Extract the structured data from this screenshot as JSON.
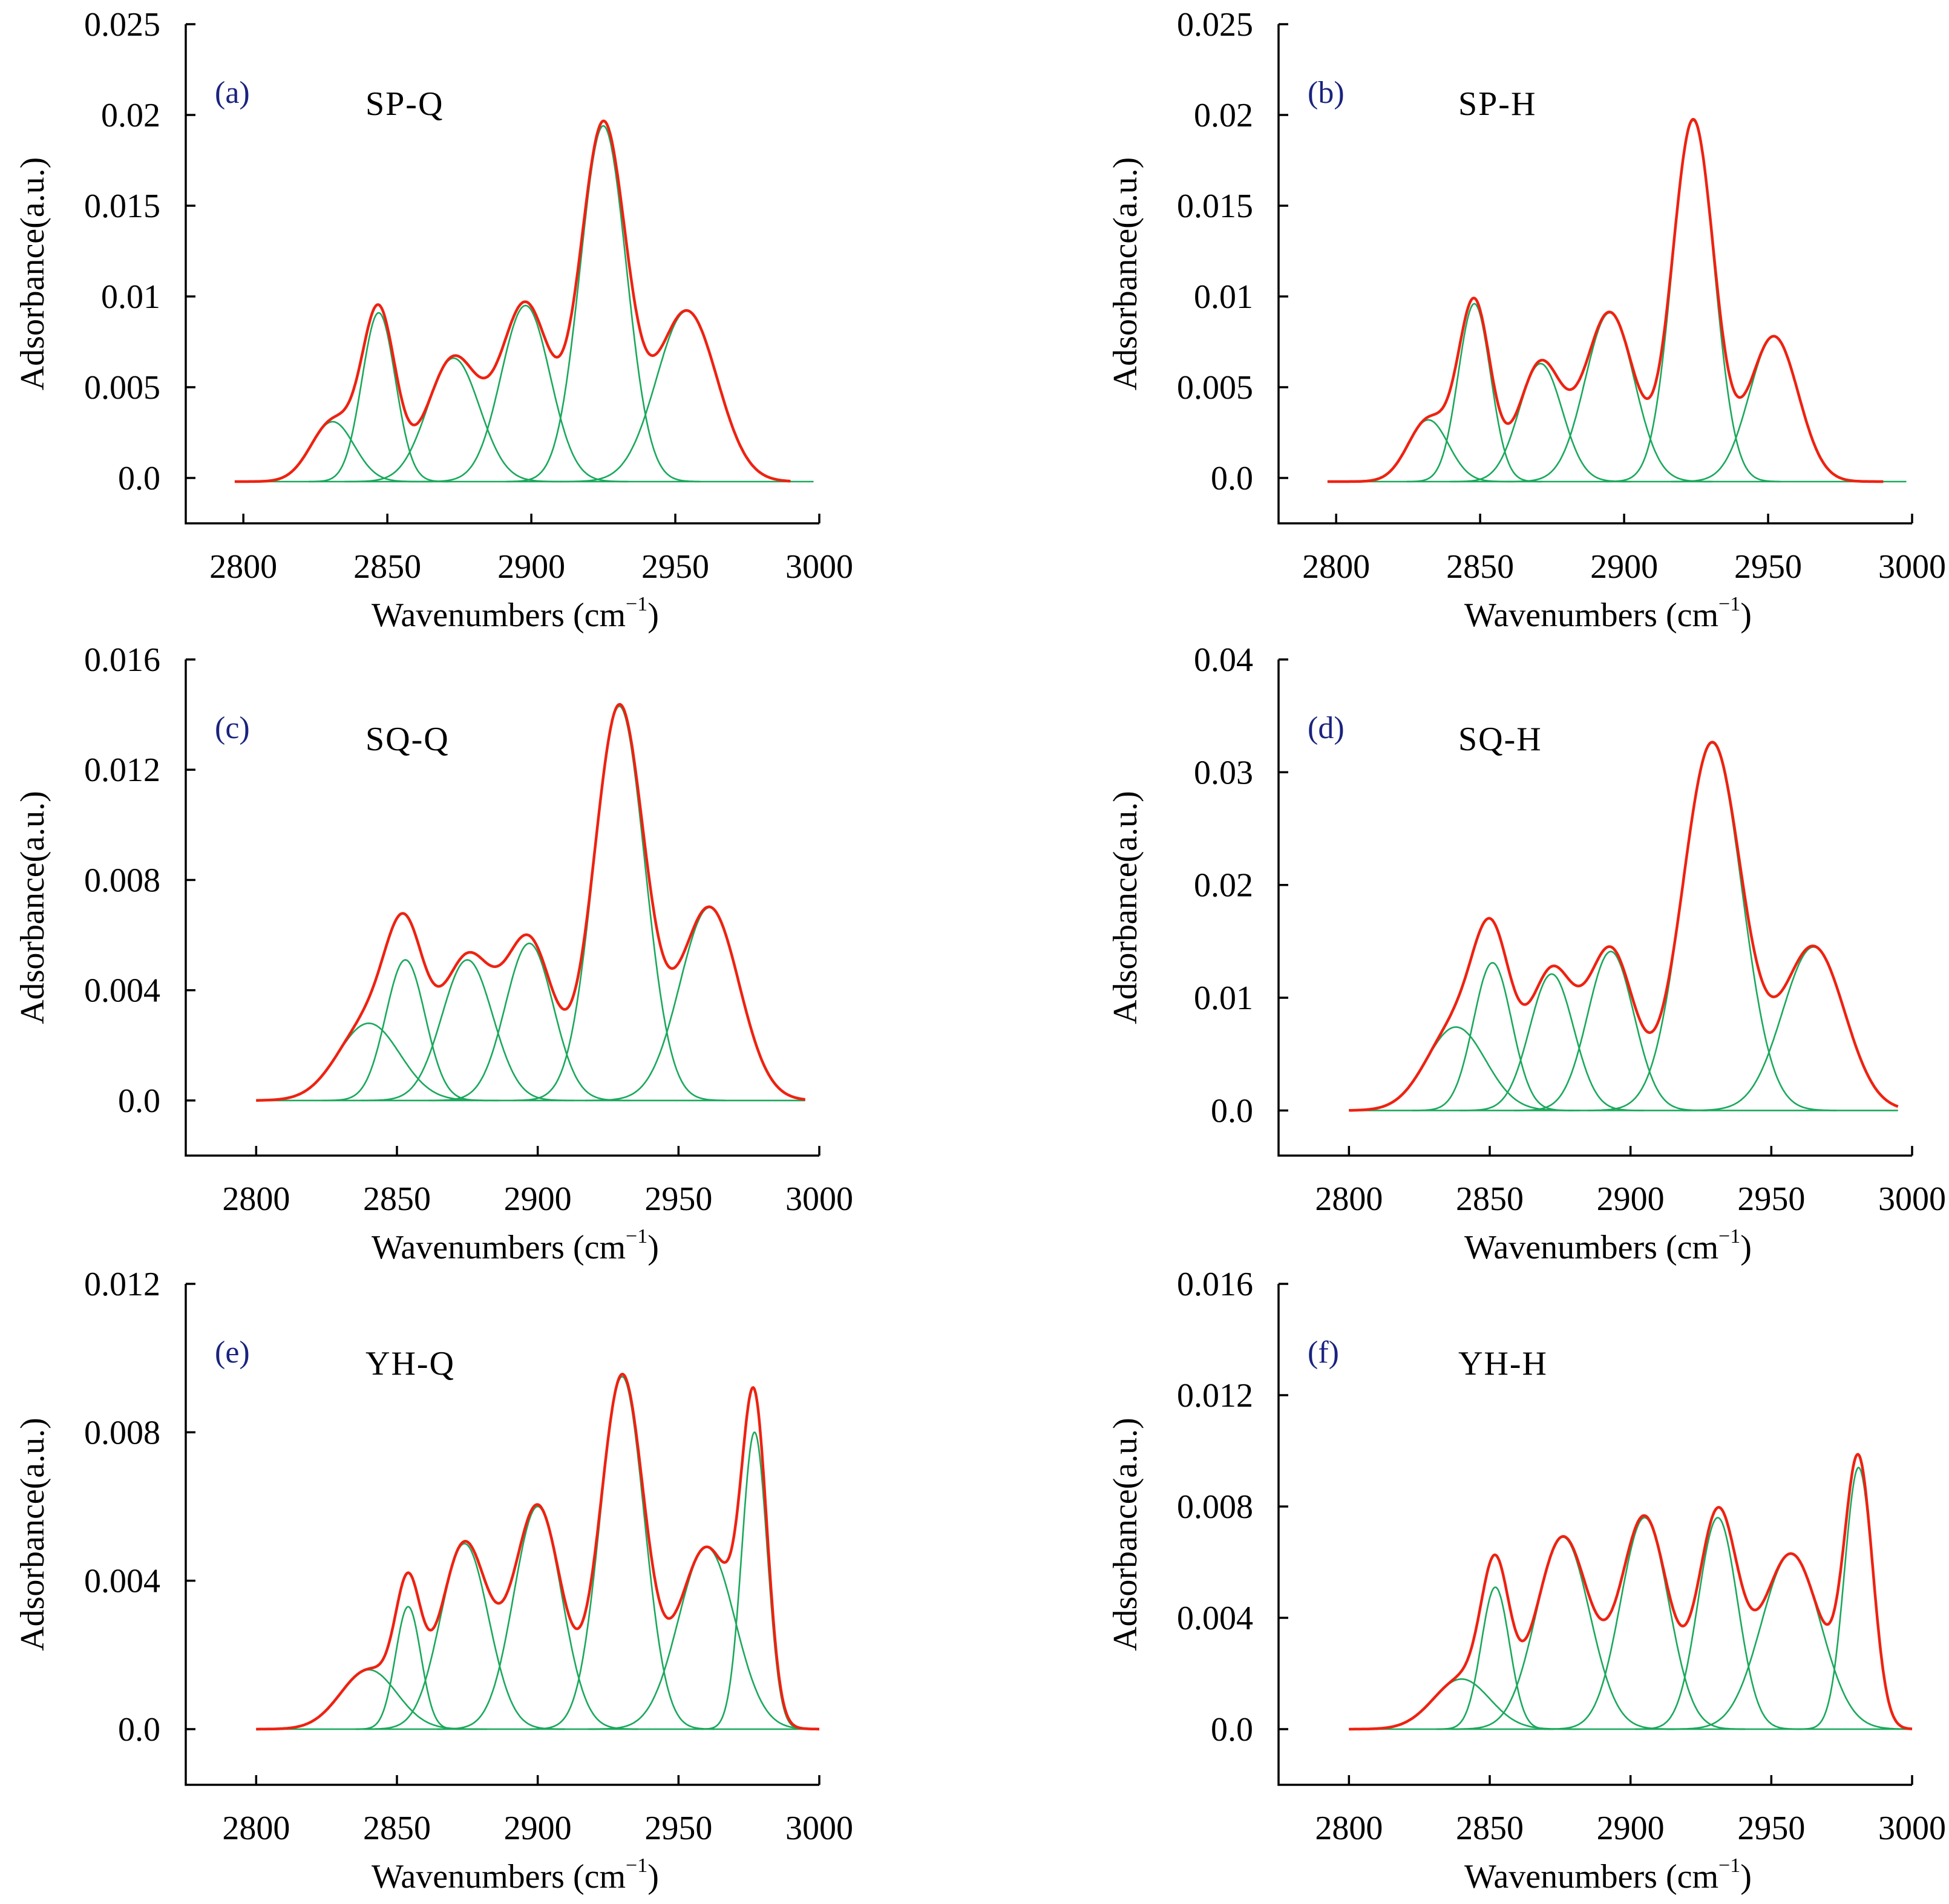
{
  "colors": {
    "total": "#ee2211",
    "component": "#1aa85c",
    "letter": "#1a237e",
    "axis": "#000000"
  },
  "axis_labels": {
    "x_main": "Wavenumbers (cm",
    "x_sup": "−1",
    "x_close": ")",
    "y": "Adsorbance(a.u.)"
  },
  "chart_data": [
    {
      "type": "line",
      "panel": "(a)",
      "title": "SP-Q",
      "xlim": [
        2780,
        3000
      ],
      "ylim": [
        -0.0025,
        0.025
      ],
      "xticks": [
        2800,
        2850,
        2900,
        2950,
        3000
      ],
      "xtick_labels": [
        "2800",
        "2850",
        "2900",
        "2950",
        "3000"
      ],
      "yticks": [
        0,
        0.005,
        0.01,
        0.015,
        0.02,
        0.025
      ],
      "ytick_labels": [
        "0.0",
        "0.005",
        "0.01",
        "0.015",
        "0.02",
        "0.025"
      ],
      "x_range": [
        2797,
        2990
      ],
      "baseline": -0.0002,
      "peaks": [
        {
          "center": 2831,
          "height": 0.0033,
          "width": 7.5
        },
        {
          "center": 2847,
          "height": 0.0093,
          "width": 5.8
        },
        {
          "center": 2873,
          "height": 0.0068,
          "width": 9.0
        },
        {
          "center": 2898,
          "height": 0.0097,
          "width": 8.5
        },
        {
          "center": 2925,
          "height": 0.0196,
          "width": 8.0
        },
        {
          "center": 2954,
          "height": 0.0094,
          "width": 10.5
        }
      ]
    },
    {
      "type": "line",
      "panel": "(b)",
      "title": "SP-H",
      "xlim": [
        2780,
        3000
      ],
      "ylim": [
        -0.0025,
        0.025
      ],
      "xticks": [
        2800,
        2850,
        2900,
        2950,
        3000
      ],
      "xtick_labels": [
        "2800",
        "2850",
        "2900",
        "2950",
        "3000"
      ],
      "yticks": [
        0,
        0.005,
        0.01,
        0.015,
        0.02,
        0.025
      ],
      "ytick_labels": [
        "0.0",
        "0.005",
        "0.01",
        "0.015",
        "0.02",
        "0.025"
      ],
      "x_range": [
        2797,
        2990
      ],
      "baseline": -0.0002,
      "peaks": [
        {
          "center": 2832,
          "height": 0.0034,
          "width": 7.0
        },
        {
          "center": 2848,
          "height": 0.0098,
          "width": 5.6
        },
        {
          "center": 2871,
          "height": 0.0065,
          "width": 7.5
        },
        {
          "center": 2895,
          "height": 0.0093,
          "width": 8.5
        },
        {
          "center": 2924,
          "height": 0.0199,
          "width": 7.2
        },
        {
          "center": 2952,
          "height": 0.008,
          "width": 8.5
        }
      ]
    },
    {
      "type": "line",
      "panel": "(c)",
      "title": "SQ-Q",
      "xlim": [
        2775,
        3000
      ],
      "ylim": [
        -0.002,
        0.016
      ],
      "xticks": [
        2800,
        2850,
        2900,
        2950,
        3000
      ],
      "xtick_labels": [
        "2800",
        "2850",
        "2900",
        "2950",
        "3000"
      ],
      "yticks": [
        0,
        0.004,
        0.008,
        0.012,
        0.016
      ],
      "ytick_labels": [
        "0.0",
        "0.004",
        "0.008",
        "0.012",
        "0.016"
      ],
      "x_range": [
        2800,
        2995
      ],
      "baseline": 0,
      "peaks": [
        {
          "center": 2840,
          "height": 0.0028,
          "width": 11.0
        },
        {
          "center": 2853,
          "height": 0.0051,
          "width": 7.0
        },
        {
          "center": 2875,
          "height": 0.0051,
          "width": 9.0
        },
        {
          "center": 2897,
          "height": 0.0057,
          "width": 8.5
        },
        {
          "center": 2929,
          "height": 0.0143,
          "width": 9.0
        },
        {
          "center": 2961,
          "height": 0.007,
          "width": 10.5
        }
      ]
    },
    {
      "type": "line",
      "panel": "(d)",
      "title": "SQ-H",
      "xlim": [
        2775,
        3000
      ],
      "ylim": [
        -0.004,
        0.04
      ],
      "xticks": [
        2800,
        2850,
        2900,
        2950,
        3000
      ],
      "xtick_labels": [
        "2800",
        "2850",
        "2900",
        "2950",
        "3000"
      ],
      "yticks": [
        0,
        0.01,
        0.02,
        0.03,
        0.04
      ],
      "ytick_labels": [
        "0.0",
        "0.01",
        "0.02",
        "0.03",
        "0.04"
      ],
      "x_range": [
        2800,
        2995
      ],
      "baseline": 0,
      "peaks": [
        {
          "center": 2838,
          "height": 0.0074,
          "width": 10.5
        },
        {
          "center": 2851,
          "height": 0.0131,
          "width": 6.8
        },
        {
          "center": 2872,
          "height": 0.0121,
          "width": 7.8
        },
        {
          "center": 2893,
          "height": 0.0141,
          "width": 8.2
        },
        {
          "center": 2929,
          "height": 0.0326,
          "width": 10.5
        },
        {
          "center": 2965,
          "height": 0.0145,
          "width": 11.0
        }
      ]
    },
    {
      "type": "line",
      "panel": "(e)",
      "title": "YH-Q",
      "xlim": [
        2775,
        3000
      ],
      "ylim": [
        -0.0015,
        0.012
      ],
      "xticks": [
        2800,
        2850,
        2900,
        2950,
        3000
      ],
      "xtick_labels": [
        "2800",
        "2850",
        "2900",
        "2950",
        "3000"
      ],
      "yticks": [
        0,
        0.004,
        0.008,
        0.012
      ],
      "ytick_labels": [
        "0.0",
        "0.004",
        "0.008",
        "0.012"
      ],
      "x_range": [
        2800,
        3000
      ],
      "baseline": 0,
      "peaks": [
        {
          "center": 2840,
          "height": 0.0016,
          "width": 10.0
        },
        {
          "center": 2854,
          "height": 0.0033,
          "width": 4.5
        },
        {
          "center": 2874,
          "height": 0.005,
          "width": 8.5
        },
        {
          "center": 2900,
          "height": 0.006,
          "width": 8.5
        },
        {
          "center": 2930,
          "height": 0.0095,
          "width": 7.8
        },
        {
          "center": 2960,
          "height": 0.0049,
          "width": 10.0
        },
        {
          "center": 2977,
          "height": 0.008,
          "width": 4.5
        }
      ]
    },
    {
      "type": "line",
      "panel": "(f)",
      "title": "YH-H",
      "xlim": [
        2775,
        3000
      ],
      "ylim": [
        -0.002,
        0.016
      ],
      "xticks": [
        2800,
        2850,
        2900,
        2950,
        3000
      ],
      "xtick_labels": [
        "2800",
        "2850",
        "2900",
        "2950",
        "3000"
      ],
      "yticks": [
        0,
        0.004,
        0.008,
        0.012,
        0.016
      ],
      "ytick_labels": [
        "0.0",
        "0.004",
        "0.008",
        "0.012",
        "0.016"
      ],
      "x_range": [
        2800,
        3000
      ],
      "baseline": 0,
      "peaks": [
        {
          "center": 2840,
          "height": 0.0018,
          "width": 10.0
        },
        {
          "center": 2852,
          "height": 0.0051,
          "width": 5.0
        },
        {
          "center": 2876,
          "height": 0.0069,
          "width": 9.5
        },
        {
          "center": 2905,
          "height": 0.0076,
          "width": 8.5
        },
        {
          "center": 2957,
          "height": 0.0063,
          "width": 10.5
        },
        {
          "center": 2931,
          "height": 0.0076,
          "width": 7.0
        },
        {
          "center": 2981,
          "height": 0.0094,
          "width": 5.0
        }
      ]
    }
  ]
}
